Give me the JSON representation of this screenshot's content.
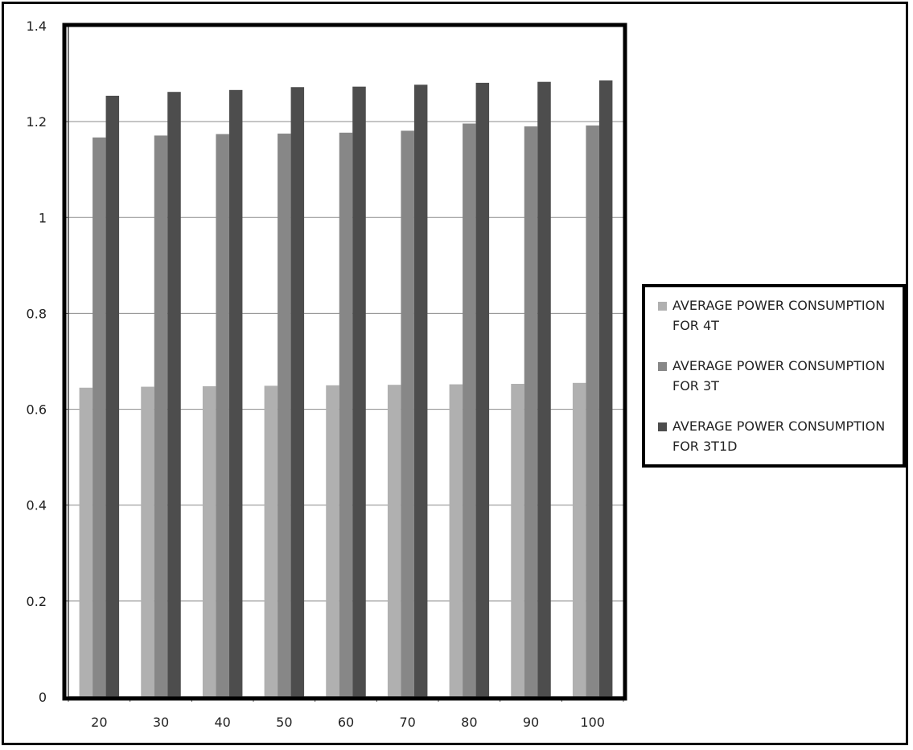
{
  "chart_data": {
    "type": "bar",
    "title": "",
    "xlabel": "",
    "ylabel": "",
    "categories": [
      "20",
      "30",
      "40",
      "50",
      "60",
      "70",
      "80",
      "90",
      "100"
    ],
    "ylim": [
      0,
      1.4
    ],
    "yticks": [
      "0",
      "0.2",
      "0.4",
      "0.6",
      "0.8",
      "1",
      "1.2",
      "1.4"
    ],
    "grid": true,
    "legend_position": "right",
    "series": [
      {
        "name": "AVERAGE POWER CONSUMPTION FOR 4T",
        "color": "#b0b0b0",
        "values": [
          0.645,
          0.647,
          0.648,
          0.649,
          0.65,
          0.651,
          0.652,
          0.653,
          0.655
        ]
      },
      {
        "name": "AVERAGE POWER CONSUMPTION FOR 3T",
        "color": "#878787",
        "values": [
          1.167,
          1.171,
          1.174,
          1.175,
          1.177,
          1.181,
          1.196,
          1.19,
          1.192
        ]
      },
      {
        "name": "AVERAGE POWER CONSUMPTION FOR 3T1D",
        "color": "#4d4d4d",
        "values": [
          1.254,
          1.262,
          1.266,
          1.272,
          1.273,
          1.277,
          1.281,
          1.283,
          1.286
        ]
      }
    ]
  }
}
